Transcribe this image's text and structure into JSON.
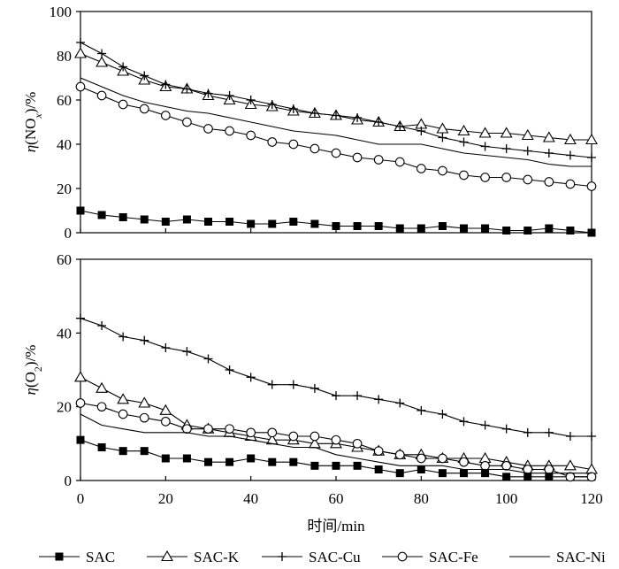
{
  "chart_data": {
    "x_axis": {
      "label": "时间/min",
      "range": [
        0,
        120
      ],
      "ticks": [
        0,
        20,
        40,
        60,
        80,
        100,
        120
      ]
    },
    "legend": {
      "placement": "bottom",
      "entries": [
        {
          "name": "SAC",
          "marker": "filled-square"
        },
        {
          "name": "SAC-K",
          "marker": "open-triangle"
        },
        {
          "name": "SAC-Cu",
          "marker": "plus"
        },
        {
          "name": "SAC-Fe",
          "marker": "open-circle"
        },
        {
          "name": "SAC-Ni",
          "marker": "none"
        }
      ]
    },
    "panels": [
      {
        "type": "line",
        "ylabel_prefix": "η(NO",
        "ylabel_sub": "x",
        "ylabel_suffix": ")/%",
        "ylim": [
          0,
          100
        ],
        "yticks": [
          0,
          20,
          40,
          60,
          80,
          100
        ],
        "series": [
          {
            "name": "SAC",
            "marker": "filled-square",
            "x": [
              0,
              5,
              10,
              15,
              20,
              25,
              30,
              35,
              40,
              45,
              50,
              55,
              60,
              65,
              70,
              75,
              80,
              85,
              90,
              95,
              100,
              105,
              110,
              115,
              120
            ],
            "y": [
              10,
              8,
              7,
              6,
              5,
              6,
              5,
              5,
              4,
              4,
              5,
              4,
              3,
              3,
              3,
              2,
              2,
              3,
              2,
              2,
              1,
              1,
              2,
              1,
              0
            ]
          },
          {
            "name": "SAC-K",
            "marker": "open-triangle",
            "x": [
              0,
              5,
              10,
              15,
              20,
              25,
              30,
              35,
              40,
              45,
              50,
              55,
              60,
              65,
              70,
              75,
              80,
              85,
              90,
              95,
              100,
              105,
              110,
              115,
              120
            ],
            "y": [
              81,
              77,
              73,
              69,
              66,
              65,
              62,
              60,
              58,
              57,
              55,
              54,
              53,
              51,
              50,
              48,
              49,
              47,
              46,
              45,
              45,
              44,
              43,
              42,
              42
            ]
          },
          {
            "name": "SAC-Cu",
            "marker": "plus",
            "x": [
              0,
              5,
              10,
              15,
              20,
              25,
              30,
              35,
              40,
              45,
              50,
              55,
              60,
              65,
              70,
              75,
              80,
              85,
              90,
              95,
              100,
              105,
              110,
              115,
              120
            ],
            "y": [
              86,
              81,
              75,
              71,
              67,
              65,
              63,
              62,
              60,
              58,
              56,
              54,
              53,
              52,
              50,
              48,
              46,
              43,
              41,
              39,
              38,
              37,
              36,
              35,
              34
            ]
          },
          {
            "name": "SAC-Fe",
            "marker": "open-circle",
            "x": [
              0,
              5,
              10,
              15,
              20,
              25,
              30,
              35,
              40,
              45,
              50,
              55,
              60,
              65,
              70,
              75,
              80,
              85,
              90,
              95,
              100,
              105,
              110,
              115,
              120
            ],
            "y": [
              66,
              62,
              58,
              56,
              53,
              50,
              47,
              46,
              44,
              41,
              40,
              38,
              36,
              34,
              33,
              32,
              29,
              28,
              26,
              25,
              25,
              24,
              23,
              22,
              21
            ]
          },
          {
            "name": "SAC-Ni",
            "marker": "none",
            "x": [
              0,
              5,
              10,
              15,
              20,
              25,
              30,
              35,
              40,
              45,
              50,
              55,
              60,
              65,
              70,
              75,
              80,
              85,
              90,
              95,
              100,
              105,
              110,
              115,
              120
            ],
            "y": [
              70,
              66,
              62,
              59,
              57,
              55,
              54,
              52,
              50,
              48,
              46,
              45,
              44,
              42,
              40,
              40,
              40,
              38,
              36,
              35,
              34,
              33,
              31,
              30,
              30
            ]
          }
        ]
      },
      {
        "type": "line",
        "ylabel_prefix": "η(O",
        "ylabel_sub": "2",
        "ylabel_suffix": ")/%",
        "ylim": [
          0,
          60
        ],
        "yticks": [
          0,
          20,
          40,
          60
        ],
        "series": [
          {
            "name": "SAC",
            "marker": "filled-square",
            "x": [
              0,
              5,
              10,
              15,
              20,
              25,
              30,
              35,
              40,
              45,
              50,
              55,
              60,
              65,
              70,
              75,
              80,
              85,
              90,
              95,
              100,
              105,
              110,
              115,
              120
            ],
            "y": [
              11,
              9,
              8,
              8,
              6,
              6,
              5,
              5,
              6,
              5,
              5,
              4,
              4,
              4,
              3,
              2,
              3,
              2,
              2,
              2,
              1,
              1,
              1,
              1,
              1
            ]
          },
          {
            "name": "SAC-K",
            "marker": "open-triangle",
            "x": [
              0,
              5,
              10,
              15,
              20,
              25,
              30,
              35,
              40,
              45,
              50,
              55,
              60,
              65,
              70,
              75,
              80,
              85,
              90,
              95,
              100,
              105,
              110,
              115,
              120
            ],
            "y": [
              28,
              25,
              22,
              21,
              19,
              15,
              14,
              13,
              12,
              11,
              11,
              10,
              10,
              9,
              8,
              7,
              7,
              6,
              6,
              6,
              5,
              4,
              4,
              4,
              3
            ]
          },
          {
            "name": "SAC-Cu",
            "marker": "plus",
            "x": [
              0,
              5,
              10,
              15,
              20,
              25,
              30,
              35,
              40,
              45,
              50,
              55,
              60,
              65,
              70,
              75,
              80,
              85,
              90,
              95,
              100,
              105,
              110,
              115,
              120
            ],
            "y": [
              44,
              42,
              39,
              38,
              36,
              35,
              33,
              30,
              28,
              26,
              26,
              25,
              23,
              23,
              22,
              21,
              19,
              18,
              16,
              15,
              14,
              13,
              13,
              12,
              12
            ]
          },
          {
            "name": "SAC-Fe",
            "marker": "open-circle",
            "x": [
              0,
              5,
              10,
              15,
              20,
              25,
              30,
              35,
              40,
              45,
              50,
              55,
              60,
              65,
              70,
              75,
              80,
              85,
              90,
              95,
              100,
              105,
              110,
              115,
              120
            ],
            "y": [
              21,
              20,
              18,
              17,
              16,
              14,
              14,
              14,
              13,
              13,
              12,
              12,
              11,
              10,
              8,
              7,
              6,
              6,
              5,
              4,
              4,
              3,
              3,
              1,
              1
            ]
          },
          {
            "name": "SAC-Ni",
            "marker": "none",
            "x": [
              0,
              5,
              10,
              15,
              20,
              25,
              30,
              35,
              40,
              45,
              50,
              55,
              60,
              65,
              70,
              75,
              80,
              85,
              90,
              95,
              100,
              105,
              110,
              115,
              120
            ],
            "y": [
              18,
              15,
              14,
              13,
              13,
              13,
              12,
              12,
              11,
              10,
              9,
              9,
              7,
              6,
              5,
              4,
              4,
              4,
              3,
              3,
              3,
              2,
              2,
              2,
              2
            ]
          }
        ]
      }
    ]
  }
}
